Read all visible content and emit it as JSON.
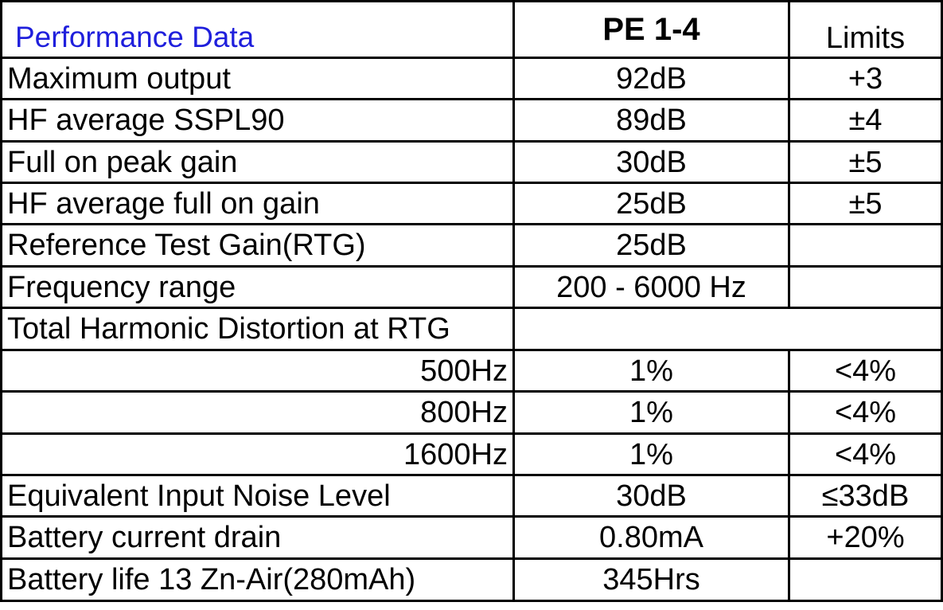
{
  "table": {
    "title": "Performance Data",
    "col_model": "PE 1-4",
    "col_limits": "Limits",
    "rows": [
      {
        "label": "Maximum output",
        "value": "92dB",
        "limit": "+3"
      },
      {
        "label": "HF average SSPL90",
        "value": "89dB",
        "limit": "±4"
      },
      {
        "label": "Full on peak gain",
        "value": "30dB",
        "limit": "±5"
      },
      {
        "label": "HF average full on gain",
        "value": "25dB",
        "limit": "±5"
      },
      {
        "label": "Reference Test Gain(RTG)",
        "value": "25dB",
        "limit": ""
      },
      {
        "label": "Frequency range",
        "value": "200 - 6000 Hz",
        "limit": ""
      },
      {
        "label": "Total Harmonic Distortion at RTG"
      },
      {
        "label": "500Hz",
        "value": "1%",
        "limit": "<4%"
      },
      {
        "label": "800Hz",
        "value": "1%",
        "limit": "<4%"
      },
      {
        "label": "1600Hz",
        "value": "1%",
        "limit": "<4%"
      },
      {
        "label": "Equivalent Input Noise Level",
        "value": "30dB",
        "limit": "≤33dB"
      },
      {
        "label": "Battery current drain",
        "value": "0.80mA",
        "limit": "+20%"
      },
      {
        "label": "Battery life 13 Zn-Air(280mAh)",
        "value": "345Hrs",
        "limit": ""
      }
    ]
  }
}
